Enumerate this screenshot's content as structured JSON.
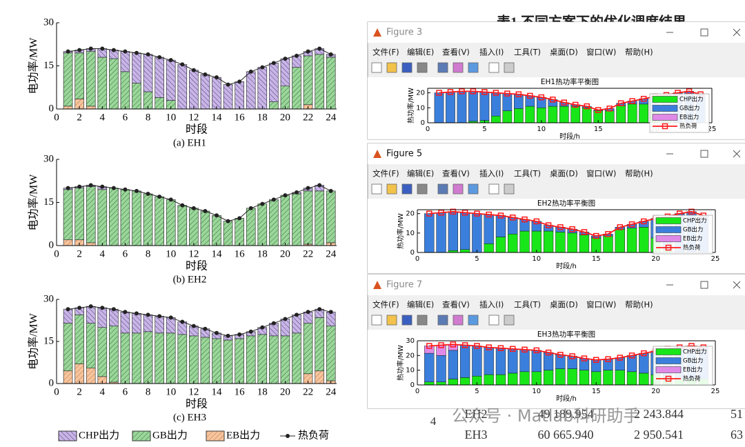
{
  "header_fragment": "表1  不同方案下的优化调度结果",
  "menu": [
    "文件(F)",
    "编辑(E)",
    "查看(V)",
    "插入(I)",
    "工具(T)",
    "桌面(D)",
    "窗口(W)",
    "帮助(H)"
  ],
  "windows": [
    {
      "title": "Figure 3",
      "chart": 3
    },
    {
      "title": "Figure 5",
      "chart": 4
    },
    {
      "title": "Figure 7",
      "chart": 5
    }
  ],
  "table": {
    "index": "4",
    "rows": [
      [
        "EH2",
        "49 189.954",
        "2 243.844",
        "51"
      ],
      [
        "EH3",
        "60 665.940",
        "2 950.541",
        "63"
      ]
    ]
  },
  "watermark": "公众号 · Matlab科研助手",
  "chart_data": [
    {
      "type": "bar",
      "stacked": true,
      "hatch": true,
      "caption": "(a) EH1",
      "xlabel": "时段",
      "ylabel": "电功率/MW",
      "x": [
        1,
        2,
        3,
        4,
        5,
        6,
        7,
        8,
        9,
        10,
        11,
        12,
        13,
        14,
        15,
        16,
        17,
        18,
        19,
        20,
        21,
        22,
        23,
        24
      ],
      "xlim": [
        0,
        24.5
      ],
      "xticks": [
        0,
        2,
        4,
        6,
        8,
        10,
        12,
        14,
        16,
        18,
        20,
        22,
        24
      ],
      "ylim": [
        0,
        30
      ],
      "yticks": [
        0,
        15,
        30
      ],
      "series": [
        {
          "color": "#f8c49c",
          "values": [
            1,
            3.5,
            1,
            0,
            0,
            0,
            0,
            0,
            0,
            0,
            0,
            0,
            0,
            0,
            0,
            0,
            0,
            0,
            0,
            0,
            0,
            1.5,
            0,
            0
          ]
        },
        {
          "color": "#9bd69b",
          "values": [
            18.5,
            16,
            19,
            18,
            17.5,
            13,
            9,
            6,
            4,
            3,
            0,
            0,
            0,
            0,
            0,
            0,
            0,
            0,
            2.5,
            8,
            14.5,
            17,
            19,
            18
          ]
        },
        {
          "color": "#c8b5e6",
          "values": [
            0.5,
            1,
            1,
            3,
            3,
            7,
            10.5,
            13,
            14,
            14,
            15.5,
            13.5,
            12,
            11,
            8.5,
            9.5,
            13,
            14.5,
            13.5,
            9.5,
            4,
            1.5,
            2,
            1
          ]
        },
        {
          "type": "line",
          "color": "#222222",
          "values": [
            20,
            20.5,
            21,
            21,
            20.5,
            20,
            19.5,
            19,
            18,
            17,
            15.5,
            13.5,
            12,
            11,
            8.5,
            9.5,
            13,
            14.5,
            16,
            17.5,
            18.5,
            20,
            21,
            19
          ]
        }
      ]
    },
    {
      "type": "bar",
      "stacked": true,
      "hatch": true,
      "caption": "(b) EH2",
      "xlabel": "时段",
      "ylabel": "电功率/MW",
      "x": [
        1,
        2,
        3,
        4,
        5,
        6,
        7,
        8,
        9,
        10,
        11,
        12,
        13,
        14,
        15,
        16,
        17,
        18,
        19,
        20,
        21,
        22,
        23,
        24
      ],
      "xlim": [
        0,
        24.5
      ],
      "xticks": [
        0,
        2,
        4,
        6,
        8,
        10,
        12,
        14,
        16,
        18,
        20,
        22,
        24
      ],
      "ylim": [
        0,
        30
      ],
      "yticks": [
        0,
        15,
        30
      ],
      "series": [
        {
          "color": "#f8c49c",
          "values": [
            2,
            2,
            1,
            0,
            0,
            0,
            0,
            0,
            0,
            0,
            0,
            0,
            0,
            0,
            0,
            0,
            0,
            0,
            0,
            0,
            0,
            0.5,
            0,
            1
          ]
        },
        {
          "color": "#9bd69b",
          "values": [
            17.5,
            18,
            19.5,
            19.5,
            20,
            19.5,
            19,
            18,
            17,
            16,
            14,
            13,
            12,
            10.5,
            8.5,
            9.5,
            13,
            14.5,
            16,
            17.5,
            18,
            18.5,
            19,
            18
          ]
        },
        {
          "color": "#c8b5e6",
          "values": [
            0.5,
            0.5,
            0.5,
            1,
            0,
            0,
            0,
            0,
            0,
            0,
            0,
            0,
            0,
            0,
            0,
            0,
            0,
            0,
            0,
            0,
            0.5,
            1,
            2,
            0
          ]
        },
        {
          "type": "line",
          "color": "#222222",
          "values": [
            20,
            20.5,
            21,
            20.5,
            20,
            19.5,
            19,
            18,
            17,
            16,
            14,
            13,
            12,
            10.5,
            8.5,
            9.5,
            13,
            14.5,
            16,
            17.5,
            18.5,
            20,
            21,
            19
          ]
        }
      ]
    },
    {
      "type": "bar",
      "stacked": true,
      "hatch": true,
      "caption": "(c) EH3",
      "xlabel": "时段",
      "ylabel": "电功率/MW",
      "legend": "bottom",
      "x": [
        1,
        2,
        3,
        4,
        5,
        6,
        7,
        8,
        9,
        10,
        11,
        12,
        13,
        14,
        15,
        16,
        17,
        18,
        19,
        20,
        21,
        22,
        23,
        24
      ],
      "xlim": [
        0,
        24.5
      ],
      "xticks": [
        0,
        2,
        4,
        6,
        8,
        10,
        12,
        14,
        16,
        18,
        20,
        22,
        24
      ],
      "ylim": [
        0,
        30
      ],
      "yticks": [
        0,
        15,
        30
      ],
      "series": [
        {
          "name": "EB出力",
          "color": "#f8c49c",
          "values": [
            4.5,
            7,
            5.5,
            2.5,
            0.5,
            0,
            0,
            0,
            0,
            0,
            0,
            0,
            0,
            0,
            0,
            0,
            0,
            0,
            0,
            0,
            0,
            3.5,
            4.5,
            1
          ]
        },
        {
          "name": "GB出力",
          "color": "#9bd69b",
          "values": [
            17,
            17.5,
            16,
            17.5,
            20,
            18,
            18,
            18.5,
            18,
            18,
            17.5,
            17,
            16.5,
            16,
            15.5,
            16,
            17,
            17.5,
            17,
            17,
            18,
            18,
            19,
            19.5
          ]
        },
        {
          "name": "CHP出力",
          "color": "#c8b5e6",
          "values": [
            5,
            2.5,
            6,
            7,
            6,
            7.5,
            7,
            6,
            6,
            5.5,
            4.5,
            3.5,
            3,
            2,
            1.5,
            1.5,
            1.5,
            2.5,
            4.5,
            6,
            6.5,
            4,
            3,
            5
          ]
        },
        {
          "name": "热负荷",
          "type": "line",
          "color": "#222222",
          "values": [
            26.5,
            27,
            27.5,
            27,
            26.5,
            25.5,
            25,
            24.5,
            24,
            23.5,
            22,
            20.5,
            19.5,
            18,
            17,
            17.5,
            18.5,
            20,
            21.5,
            23,
            24.5,
            25.5,
            26.5,
            25.5
          ]
        }
      ]
    },
    {
      "type": "bar",
      "stacked": true,
      "box": true,
      "title": "EH1热功率平衡图",
      "xlabel": "时段/h",
      "ylabel": "热功率/MW",
      "legend": "upper right",
      "x": [
        1,
        2,
        3,
        4,
        5,
        6,
        7,
        8,
        9,
        10,
        11,
        12,
        13,
        14,
        15,
        16,
        17,
        18,
        19,
        20,
        21,
        22,
        23,
        24
      ],
      "xlim": [
        0,
        25
      ],
      "xticks": [
        0,
        5,
        10,
        15,
        20,
        25
      ],
      "ylim": [
        0,
        23
      ],
      "yticks": [
        0,
        10,
        20
      ],
      "series": [
        {
          "name": "CHP出力",
          "color": "#19e619",
          "values": [
            0,
            0,
            0,
            1,
            1.5,
            4.5,
            8,
            9.5,
            11,
            10,
            11,
            11,
            11,
            10,
            8,
            8,
            11.5,
            12.5,
            12.5,
            8,
            2,
            0.5,
            0,
            0
          ]
        },
        {
          "name": "GB出力",
          "color": "#3b7fdc",
          "values": [
            20,
            20.5,
            21,
            20,
            19,
            15.5,
            11.5,
            9.5,
            7,
            7,
            4.5,
            2.5,
            1,
            1,
            0.5,
            1.5,
            1.5,
            2,
            3.5,
            9.5,
            16.5,
            19.5,
            21,
            19
          ]
        },
        {
          "name": "EB出力",
          "color": "#e08ae8",
          "values": [
            0,
            0,
            0,
            0,
            0,
            0,
            0,
            0,
            0,
            0,
            0,
            0,
            0,
            0,
            0,
            0,
            0,
            0,
            0,
            0,
            0,
            0,
            0,
            0
          ]
        },
        {
          "name": "热负荷",
          "type": "line",
          "color": "#ff1a1a",
          "values": [
            20,
            20.5,
            21,
            21,
            20.5,
            20,
            19.5,
            19,
            18,
            17,
            15.5,
            13.5,
            12,
            11,
            8.5,
            9.5,
            13,
            14.5,
            16,
            17.5,
            18.5,
            20,
            21,
            19
          ]
        }
      ]
    },
    {
      "type": "bar",
      "stacked": true,
      "box": true,
      "title": "EH2热功率平衡图",
      "xlabel": "时段/h",
      "ylabel": "热功率/MW",
      "legend": "upper right",
      "x": [
        1,
        2,
        3,
        4,
        5,
        6,
        7,
        8,
        9,
        10,
        11,
        12,
        13,
        14,
        15,
        16,
        17,
        18,
        19,
        20,
        21,
        22,
        23,
        24
      ],
      "xlim": [
        0,
        25
      ],
      "xticks": [
        0,
        5,
        10,
        15,
        20,
        25
      ],
      "ylim": [
        0,
        22
      ],
      "yticks": [
        0,
        10,
        20
      ],
      "series": [
        {
          "name": "CHP出力",
          "color": "#19e619",
          "values": [
            0,
            0,
            1,
            1.5,
            0,
            4.5,
            8,
            9.5,
            11,
            11,
            11,
            10.5,
            10,
            9,
            7.5,
            8.5,
            12,
            12.5,
            13,
            7.5,
            1.5,
            0,
            0,
            0
          ]
        },
        {
          "name": "GB出力",
          "color": "#3b7fdc",
          "values": [
            20,
            20.5,
            20,
            19,
            20,
            15,
            11,
            8.5,
            6,
            5,
            3,
            2.5,
            2,
            1.5,
            1,
            1,
            1,
            2,
            3,
            10,
            17,
            20,
            21,
            19
          ]
        },
        {
          "name": "EB出力",
          "color": "#e08ae8",
          "values": [
            0,
            0,
            0,
            0,
            0,
            0,
            0,
            0,
            0,
            0,
            0,
            0,
            0,
            0,
            0,
            0,
            0,
            0,
            0,
            0,
            0,
            0,
            0,
            0
          ]
        },
        {
          "name": "热负荷",
          "type": "line",
          "color": "#ff1a1a",
          "values": [
            20,
            20.5,
            21,
            20.5,
            20,
            19.5,
            19,
            18,
            17,
            16,
            14,
            13,
            12,
            10.5,
            8.5,
            9.5,
            13,
            14.5,
            16,
            17.5,
            18.5,
            20,
            21,
            19
          ]
        }
      ]
    },
    {
      "type": "bar",
      "stacked": true,
      "box": true,
      "title": "EH3热功率平衡图",
      "xlabel": "时段/h",
      "ylabel": "热功率/MW",
      "legend": "upper right",
      "x": [
        1,
        2,
        3,
        4,
        5,
        6,
        7,
        8,
        9,
        10,
        11,
        12,
        13,
        14,
        15,
        16,
        17,
        18,
        19,
        20,
        21,
        22,
        23,
        24
      ],
      "xlim": [
        0,
        25
      ],
      "xticks": [
        0,
        5,
        10,
        15,
        20,
        25
      ],
      "ylim": [
        0,
        30
      ],
      "yticks": [
        0,
        10,
        20,
        30
      ],
      "series": [
        {
          "name": "CHP出力",
          "color": "#19e619",
          "values": [
            2,
            2,
            4,
            5,
            6,
            7,
            7,
            8,
            9,
            9,
            10,
            11,
            11,
            10,
            9,
            10,
            10,
            9,
            8,
            7,
            5,
            4,
            4,
            4
          ]
        },
        {
          "name": "GB出力",
          "color": "#3b7fdc",
          "values": [
            19.5,
            18,
            19.5,
            22,
            20.5,
            18.5,
            18,
            16.5,
            15,
            14.5,
            12,
            9.5,
            8.5,
            8,
            8,
            7.5,
            8.5,
            11,
            13.5,
            16,
            19.5,
            21.5,
            19.5,
            21.5
          ]
        },
        {
          "name": "EB出力",
          "color": "#e08ae8",
          "values": [
            5,
            7,
            4,
            0,
            0,
            0,
            0,
            0,
            0,
            0,
            0,
            0,
            0,
            0,
            0,
            0,
            0,
            0,
            0,
            0,
            0,
            0,
            3,
            0
          ]
        },
        {
          "name": "热负荷",
          "type": "line",
          "color": "#ff1a1a",
          "values": [
            26.5,
            27,
            27.5,
            27,
            26.5,
            25.5,
            25,
            24.5,
            24,
            23.5,
            22,
            20.5,
            19.5,
            18,
            17,
            17.5,
            18.5,
            20,
            21.5,
            23,
            24.5,
            25.5,
            26.5,
            25.5
          ]
        }
      ]
    }
  ]
}
